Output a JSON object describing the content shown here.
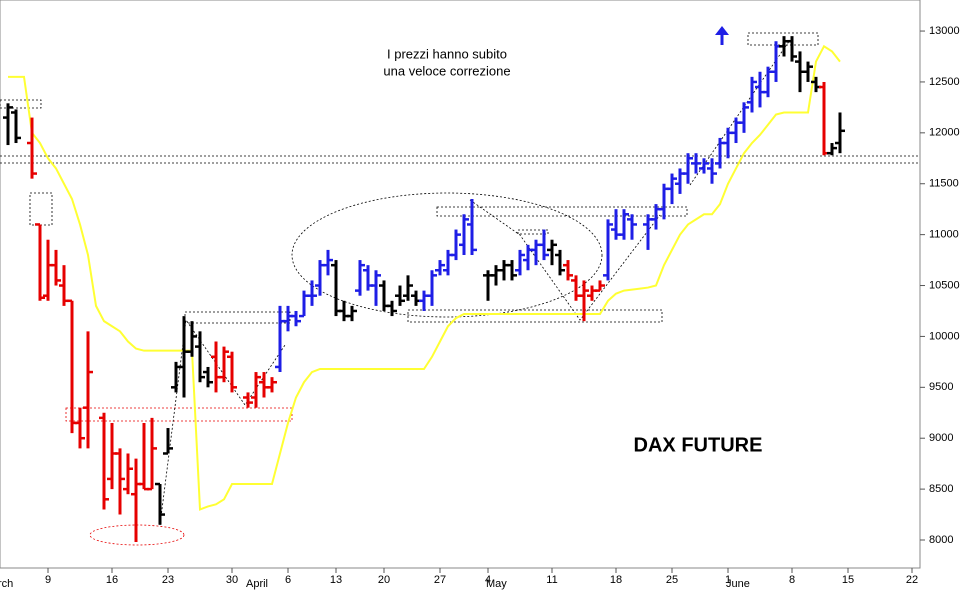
{
  "chart_data": {
    "type": "ohlc",
    "title": "DAX FUTURE",
    "annotation_lines": [
      "I prezzi hanno subito",
      "una veloce correzione"
    ],
    "ylim": [
      7725,
      13305
    ],
    "yticks": [
      8000,
      8500,
      9000,
      9500,
      10000,
      10500,
      11000,
      11500,
      12000,
      12500,
      13000
    ],
    "categories": [
      null,
      null,
      null,
      null,
      null,
      "9",
      null,
      null,
      null,
      null,
      null,
      null,
      null,
      "16",
      null,
      null,
      null,
      null,
      null,
      null,
      "23",
      null,
      null,
      null,
      null,
      null,
      null,
      null,
      "30",
      null,
      null,
      null,
      null,
      null,
      null,
      "6",
      null,
      null,
      null,
      null,
      null,
      "13",
      null,
      null,
      null,
      null,
      null,
      "20",
      null,
      null,
      null,
      null,
      null,
      null,
      "27",
      null,
      null,
      null,
      null,
      null,
      "4",
      null,
      null,
      null,
      null,
      null,
      null,
      null,
      "11",
      null,
      null,
      null,
      null,
      null,
      null,
      null,
      "18",
      null,
      null,
      null,
      null,
      null,
      null,
      "25",
      null,
      null,
      null,
      null,
      null,
      null,
      "1",
      null,
      null,
      null,
      null,
      null,
      null,
      null,
      "8",
      null,
      null,
      null,
      null,
      null,
      null,
      "15",
      null,
      null,
      null,
      null,
      null,
      null,
      null,
      "22",
      null
    ],
    "month_labels": [
      "rch",
      null,
      null,
      null,
      null,
      null,
      null,
      null,
      null,
      null,
      null,
      null,
      null,
      null,
      null,
      null,
      null,
      null,
      null,
      null,
      null,
      null,
      null,
      null,
      null,
      null,
      null,
      null,
      null,
      null,
      null,
      "April",
      null,
      null,
      null,
      null,
      null,
      null,
      null,
      null,
      null,
      null,
      null,
      null,
      null,
      null,
      null,
      null,
      null,
      null,
      null,
      null,
      null,
      null,
      null,
      null,
      null,
      null,
      null,
      null,
      null,
      "May",
      null,
      null,
      null,
      null,
      null,
      null,
      null,
      null,
      null,
      null,
      null,
      null,
      null,
      null,
      null,
      null,
      null,
      null,
      null,
      null,
      null,
      null,
      null,
      null,
      null,
      null,
      null,
      null,
      null,
      "June",
      null,
      null,
      null,
      null,
      null,
      null,
      null,
      null,
      null,
      null,
      null,
      null,
      null,
      null,
      null,
      null,
      null,
      null,
      null,
      null,
      null,
      null,
      null
    ],
    "bars": [
      {
        "o": 12150,
        "h": 12290,
        "l": 11880,
        "c": 12250,
        "color": "#000000"
      },
      {
        "o": 12200,
        "h": 12230,
        "l": 11900,
        "c": 11950,
        "color": "#000000"
      },
      null,
      {
        "o": 11900,
        "h": 12150,
        "l": 11550,
        "c": 11600,
        "color": "#e60000"
      },
      {
        "o": 11100,
        "h": 11100,
        "l": 10350,
        "c": 10380,
        "color": "#e60000"
      },
      {
        "o": 10400,
        "h": 10950,
        "l": 10350,
        "c": 10700,
        "color": "#e60000"
      },
      {
        "o": 10700,
        "h": 10850,
        "l": 10500,
        "c": 10550,
        "color": "#e60000"
      },
      {
        "o": 10500,
        "h": 10700,
        "l": 10300,
        "c": 10350,
        "color": "#e60000"
      },
      {
        "o": 10350,
        "h": 10350,
        "l": 9050,
        "c": 9150,
        "color": "#e60000"
      },
      {
        "o": 9150,
        "h": 9300,
        "l": 8900,
        "c": 9000,
        "color": "#e60000"
      },
      {
        "o": 9300,
        "h": 10050,
        "l": 8900,
        "c": 9650,
        "color": "#e60000"
      },
      null,
      {
        "o": 9200,
        "h": 9250,
        "l": 8300,
        "c": 8400,
        "color": "#e60000"
      },
      {
        "o": 8600,
        "h": 9150,
        "l": 8500,
        "c": 8850,
        "color": "#e60000"
      },
      {
        "o": 8850,
        "h": 8900,
        "l": 8250,
        "c": 8600,
        "color": "#e60000"
      },
      {
        "o": 8500,
        "h": 8850,
        "l": 8450,
        "c": 8700,
        "color": "#e60000"
      },
      {
        "o": 8450,
        "h": 8800,
        "l": 7980,
        "c": 8550,
        "color": "#e60000"
      },
      {
        "o": 8550,
        "h": 9150,
        "l": 8500,
        "c": 8500,
        "color": "#e60000"
      },
      {
        "o": 8500,
        "h": 9200,
        "l": 8500,
        "c": 8900,
        "color": "#e60000"
      },
      {
        "o": 8550,
        "h": 8550,
        "l": 8150,
        "c": 8250,
        "color": "#000000"
      },
      {
        "o": 8850,
        "h": 9100,
        "l": 8850,
        "c": 8900,
        "color": "#000000"
      },
      {
        "o": 9500,
        "h": 9750,
        "l": 9450,
        "c": 9700,
        "color": "#000000"
      },
      {
        "o": 9700,
        "h": 10200,
        "l": 9400,
        "c": 9850,
        "color": "#000000"
      },
      {
        "o": 9850,
        "h": 10150,
        "l": 9800,
        "c": 10000,
        "color": "#000000"
      },
      {
        "o": 9900,
        "h": 10050,
        "l": 9550,
        "c": 9600,
        "color": "#000000"
      },
      {
        "o": 9650,
        "h": 9700,
        "l": 9500,
        "c": 9550,
        "color": "#000000"
      },
      {
        "o": 9800,
        "h": 9950,
        "l": 9450,
        "c": 9600,
        "color": "#e60000"
      },
      {
        "o": 9600,
        "h": 9900,
        "l": 9550,
        "c": 9850,
        "color": "#e60000"
      },
      {
        "o": 9800,
        "h": 9850,
        "l": 9450,
        "c": 9500,
        "color": "#e60000"
      },
      null,
      {
        "o": 9400,
        "h": 9450,
        "l": 9300,
        "c": 9350,
        "color": "#e60000"
      },
      {
        "o": 9400,
        "h": 9650,
        "l": 9300,
        "c": 9600,
        "color": "#e60000"
      },
      {
        "o": 9550,
        "h": 9650,
        "l": 9400,
        "c": 9500,
        "color": "#e60000"
      },
      {
        "o": 9500,
        "h": 9600,
        "l": 9450,
        "c": 9550,
        "color": "#e60000"
      },
      {
        "o": 9700,
        "h": 10300,
        "l": 9650,
        "c": 10150,
        "color": "#1e1ee6"
      },
      {
        "o": 10150,
        "h": 10300,
        "l": 10050,
        "c": 10200,
        "color": "#1e1ee6"
      },
      {
        "o": 10200,
        "h": 10250,
        "l": 10100,
        "c": 10150,
        "color": "#1e1ee6"
      },
      {
        "o": 10200,
        "h": 10450,
        "l": 10200,
        "c": 10400,
        "color": "#1e1ee6"
      },
      {
        "o": 10400,
        "h": 10550,
        "l": 10300,
        "c": 10400,
        "color": "#1e1ee6"
      },
      {
        "o": 10500,
        "h": 10750,
        "l": 10400,
        "c": 10700,
        "color": "#1e1ee6"
      },
      {
        "o": 10700,
        "h": 10850,
        "l": 10600,
        "c": 10750,
        "color": "#1e1ee6"
      },
      {
        "o": 10700,
        "h": 10750,
        "l": 10200,
        "c": 10250,
        "color": "#000000"
      },
      {
        "o": 10250,
        "h": 10350,
        "l": 10150,
        "c": 10200,
        "color": "#000000"
      },
      {
        "o": 10200,
        "h": 10300,
        "l": 10150,
        "c": 10250,
        "color": "#000000"
      },
      {
        "o": 10450,
        "h": 10750,
        "l": 10400,
        "c": 10700,
        "color": "#1e1ee6"
      },
      {
        "o": 10650,
        "h": 10700,
        "l": 10450,
        "c": 10500,
        "color": "#1e1ee6"
      },
      {
        "o": 10500,
        "h": 10650,
        "l": 10300,
        "c": 10600,
        "color": "#1e1ee6"
      },
      {
        "o": 10500,
        "h": 10550,
        "l": 10250,
        "c": 10300,
        "color": "#000000"
      },
      {
        "o": 10300,
        "h": 10350,
        "l": 10200,
        "c": 10250,
        "color": "#000000"
      },
      {
        "o": 10400,
        "h": 10500,
        "l": 10300,
        "c": 10350,
        "color": "#000000"
      },
      {
        "o": 10400,
        "h": 10600,
        "l": 10350,
        "c": 10500,
        "color": "#000000"
      },
      {
        "o": 10400,
        "h": 10450,
        "l": 10300,
        "c": 10350,
        "color": "#000000"
      },
      {
        "o": 10350,
        "h": 10450,
        "l": 10250,
        "c": 10400,
        "color": "#1e1ee6"
      },
      {
        "o": 10400,
        "h": 10650,
        "l": 10300,
        "c": 10600,
        "color": "#1e1ee6"
      },
      {
        "o": 10650,
        "h": 10750,
        "l": 10600,
        "c": 10700,
        "color": "#1e1ee6"
      },
      {
        "o": 10650,
        "h": 10850,
        "l": 10600,
        "c": 10800,
        "color": "#1e1ee6"
      },
      {
        "o": 10800,
        "h": 11050,
        "l": 10750,
        "c": 11000,
        "color": "#1e1ee6"
      },
      {
        "o": 10900,
        "h": 11200,
        "l": 10800,
        "c": 11150,
        "color": "#1e1ee6"
      },
      {
        "o": 11100,
        "h": 11350,
        "l": 10800,
        "c": 10850,
        "color": "#1e1ee6"
      },
      null,
      {
        "o": 10600,
        "h": 10650,
        "l": 10350,
        "c": 10600,
        "color": "#000000"
      },
      {
        "o": 10600,
        "h": 10700,
        "l": 10500,
        "c": 10650,
        "color": "#000000"
      },
      {
        "o": 10650,
        "h": 10750,
        "l": 10550,
        "c": 10700,
        "color": "#000000"
      },
      {
        "o": 10700,
        "h": 10750,
        "l": 10550,
        "c": 10600,
        "color": "#000000"
      },
      {
        "o": 10650,
        "h": 10850,
        "l": 10600,
        "c": 10800,
        "color": "#1e1ee6"
      },
      {
        "o": 10750,
        "h": 10900,
        "l": 10650,
        "c": 10850,
        "color": "#1e1ee6"
      },
      {
        "o": 10850,
        "h": 10950,
        "l": 10700,
        "c": 10900,
        "color": "#1e1ee6"
      },
      {
        "o": 10900,
        "h": 11050,
        "l": 10750,
        "c": 10800,
        "color": "#1e1ee6"
      },
      {
        "o": 10850,
        "h": 10950,
        "l": 10700,
        "c": 10900,
        "color": "#000000"
      },
      {
        "o": 10800,
        "h": 10850,
        "l": 10600,
        "c": 10650,
        "color": "#000000"
      },
      {
        "o": 10700,
        "h": 10750,
        "l": 10550,
        "c": 10600,
        "color": "#e60000"
      },
      {
        "o": 10550,
        "h": 10600,
        "l": 10350,
        "c": 10400,
        "color": "#e60000"
      },
      {
        "o": 10400,
        "h": 10550,
        "l": 10150,
        "c": 10450,
        "color": "#e60000"
      },
      {
        "o": 10400,
        "h": 10500,
        "l": 10350,
        "c": 10450,
        "color": "#e60000"
      },
      {
        "o": 10450,
        "h": 10550,
        "l": 10450,
        "c": 10500,
        "color": "#e60000"
      },
      {
        "o": 10600,
        "h": 11150,
        "l": 10550,
        "c": 11100,
        "color": "#1e1ee6"
      },
      {
        "o": 11050,
        "h": 11250,
        "l": 10950,
        "c": 11000,
        "color": "#1e1ee6"
      },
      {
        "o": 11000,
        "h": 11250,
        "l": 10950,
        "c": 11200,
        "color": "#1e1ee6"
      },
      {
        "o": 11150,
        "h": 11200,
        "l": 10950,
        "c": 11100,
        "color": "#1e1ee6"
      },
      null,
      {
        "o": 11100,
        "h": 11200,
        "l": 10850,
        "c": 11150,
        "color": "#1e1ee6"
      },
      {
        "o": 11150,
        "h": 11300,
        "l": 11050,
        "c": 11250,
        "color": "#1e1ee6"
      },
      {
        "o": 11250,
        "h": 11500,
        "l": 11150,
        "c": 11450,
        "color": "#1e1ee6"
      },
      {
        "o": 11450,
        "h": 11600,
        "l": 11300,
        "c": 11550,
        "color": "#1e1ee6"
      },
      {
        "o": 11500,
        "h": 11650,
        "l": 11400,
        "c": 11600,
        "color": "#1e1ee6"
      },
      {
        "o": 11600,
        "h": 11800,
        "l": 11500,
        "c": 11750,
        "color": "#1e1ee6"
      },
      {
        "o": 11700,
        "h": 11800,
        "l": 11600,
        "c": 11700,
        "color": "#1e1ee6"
      },
      {
        "o": 11650,
        "h": 11750,
        "l": 11600,
        "c": 11700,
        "color": "#1e1ee6"
      },
      {
        "o": 11650,
        "h": 11750,
        "l": 11500,
        "c": 11600,
        "color": "#1e1ee6"
      },
      {
        "o": 11700,
        "h": 11950,
        "l": 11650,
        "c": 11900,
        "color": "#1e1ee6"
      },
      {
        "o": 11900,
        "h": 12050,
        "l": 11750,
        "c": 12000,
        "color": "#1e1ee6"
      },
      {
        "o": 12000,
        "h": 12150,
        "l": 11900,
        "c": 12100,
        "color": "#1e1ee6"
      },
      {
        "o": 12100,
        "h": 12300,
        "l": 12000,
        "c": 12250,
        "color": "#1e1ee6"
      },
      {
        "o": 12300,
        "h": 12550,
        "l": 12200,
        "c": 12500,
        "color": "#1e1ee6"
      },
      {
        "o": 12450,
        "h": 12600,
        "l": 12250,
        "c": 12400,
        "color": "#1e1ee6"
      },
      {
        "o": 12400,
        "h": 12650,
        "l": 12350,
        "c": 12600,
        "color": "#1e1ee6"
      },
      {
        "o": 12600,
        "h": 12900,
        "l": 12500,
        "c": 12850,
        "color": "#1e1ee6"
      },
      {
        "o": 12850,
        "h": 12950,
        "l": 12750,
        "c": 12900,
        "color": "#000000"
      },
      {
        "o": 12900,
        "h": 12950,
        "l": 12700,
        "c": 12750,
        "color": "#000000"
      },
      {
        "o": 12700,
        "h": 12800,
        "l": 12400,
        "c": 12600,
        "color": "#000000"
      },
      {
        "o": 12600,
        "h": 12700,
        "l": 12500,
        "c": 12650,
        "color": "#000000"
      },
      {
        "o": 12500,
        "h": 12550,
        "l": 12400,
        "c": 12450,
        "color": "#000000"
      },
      {
        "o": 12450,
        "h": 12500,
        "l": 11780,
        "c": 11800,
        "color": "#e60000"
      },
      {
        "o": 11800,
        "h": 11900,
        "l": 11780,
        "c": 11850,
        "color": "#000000"
      },
      {
        "o": 11900,
        "h": 12200,
        "l": 11800,
        "c": 12020,
        "color": "#000000"
      },
      null,
      null,
      null,
      null,
      null,
      null,
      null,
      null,
      null,
      null
    ],
    "indicator": {
      "color": "#ffff33",
      "values": [
        12550,
        12550,
        12550,
        12000,
        11900,
        11750,
        11650,
        11500,
        11350,
        11100,
        10800,
        10300,
        10150,
        10100,
        10050,
        9950,
        9880,
        9860,
        9860,
        9860,
        9860,
        9860,
        9860,
        9860,
        8300,
        8330,
        8350,
        8400,
        8550,
        8550,
        8550,
        8550,
        8550,
        8550,
        8850,
        9150,
        9400,
        9550,
        9650,
        9680,
        9680,
        9680,
        9680,
        9680,
        9680,
        9680,
        9680,
        9680,
        9680,
        9680,
        9680,
        9680,
        9680,
        9800,
        9950,
        10100,
        10180,
        10220,
        10220,
        10220,
        10220,
        10220,
        10220,
        10220,
        10220,
        10220,
        10220,
        10220,
        10220,
        10220,
        10220,
        10220,
        10220,
        10220,
        10220,
        10350,
        10420,
        10450,
        10460,
        10470,
        10480,
        10500,
        10700,
        10850,
        11000,
        11100,
        11150,
        11200,
        11200,
        11300,
        11500,
        11650,
        11800,
        11900,
        11980,
        12080,
        12180,
        12200,
        12200,
        12200,
        12200,
        12700,
        12850,
        12800,
        12700,
        null,
        null,
        null,
        null,
        null,
        null,
        null,
        null,
        null,
        null
      ]
    }
  }
}
